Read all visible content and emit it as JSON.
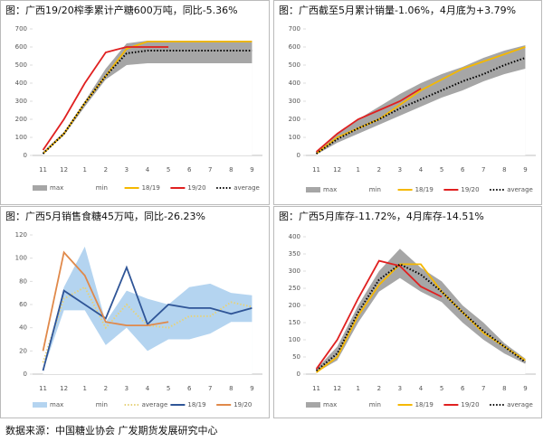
{
  "chart_data": [
    {
      "type": "line",
      "title": "图：广西19/20榨季累计产糖600万吨，同比-5.36%",
      "categories": [
        "11",
        "12",
        "1",
        "2",
        "3",
        "4",
        "5",
        "6",
        "7",
        "8",
        "9"
      ],
      "ylim": [
        0,
        700
      ],
      "yticks": [
        0,
        100,
        200,
        300,
        400,
        500,
        600,
        700
      ],
      "series": [
        {
          "name": "max",
          "kind": "area",
          "color": "#a6a6a6",
          "values": [
            20,
            130,
            300,
            480,
            620,
            635,
            635,
            635,
            635,
            635,
            635
          ]
        },
        {
          "name": "min",
          "kind": "area",
          "color": "#ffffff",
          "values": [
            10,
            110,
            270,
            420,
            500,
            510,
            510,
            510,
            510,
            510,
            510
          ]
        },
        {
          "name": "18/19",
          "color": "#f5b800",
          "values": [
            10,
            120,
            290,
            440,
            590,
            630,
            630,
            630,
            630,
            630,
            630
          ]
        },
        {
          "name": "19/20",
          "color": "#e02020",
          "values": [
            30,
            200,
            400,
            570,
            600,
            600,
            600,
            null,
            null,
            null,
            null
          ]
        },
        {
          "name": "average",
          "color": "#000000",
          "line_style": "dotted",
          "values": [
            10,
            120,
            290,
            440,
            565,
            580,
            580,
            580,
            580,
            580,
            580
          ]
        }
      ]
    },
    {
      "type": "line",
      "title": "图：广西截至5月累计销量-1.06%，4月底为+3.79%",
      "categories": [
        "11",
        "12",
        "1",
        "2",
        "3",
        "4",
        "5",
        "6",
        "7",
        "8",
        "9"
      ],
      "ylim": [
        0,
        700
      ],
      "yticks": [
        0,
        100,
        200,
        300,
        400,
        500,
        600,
        700
      ],
      "series": [
        {
          "name": "max",
          "kind": "area",
          "color": "#a6a6a6",
          "values": [
            20,
            120,
            200,
            270,
            340,
            400,
            450,
            490,
            540,
            580,
            610
          ]
        },
        {
          "name": "min",
          "kind": "area",
          "color": "#ffffff",
          "values": [
            5,
            70,
            120,
            170,
            220,
            270,
            320,
            360,
            410,
            450,
            480
          ]
        },
        {
          "name": "18/19",
          "color": "#f5b800",
          "values": [
            10,
            100,
            150,
            200,
            280,
            360,
            420,
            480,
            520,
            560,
            600
          ]
        },
        {
          "name": "19/20",
          "color": "#e02020",
          "values": [
            20,
            120,
            200,
            250,
            300,
            370,
            null,
            null,
            null,
            null,
            null
          ]
        },
        {
          "name": "average",
          "color": "#000000",
          "line_style": "dotted",
          "values": [
            10,
            90,
            150,
            200,
            260,
            310,
            360,
            410,
            450,
            500,
            540
          ]
        }
      ]
    },
    {
      "type": "line",
      "title": "图：广西5月销售食糖45万吨，同比-26.23%",
      "categories": [
        "11",
        "12",
        "1",
        "2",
        "3",
        "4",
        "5",
        "6",
        "7",
        "8",
        "9"
      ],
      "ylim": [
        0,
        120
      ],
      "yticks": [
        0,
        20,
        40,
        60,
        80,
        100,
        120
      ],
      "series": [
        {
          "name": "max",
          "kind": "area",
          "color": "#b4d4f0",
          "values": [
            5,
            75,
            110,
            45,
            72,
            65,
            60,
            75,
            78,
            70,
            68
          ]
        },
        {
          "name": "min",
          "kind": "area",
          "color": "#ffffff",
          "values": [
            3,
            55,
            55,
            25,
            40,
            20,
            30,
            30,
            35,
            45,
            45
          ]
        },
        {
          "name": "average",
          "color": "#e6d27a",
          "line_style": "dotted",
          "values": [
            10,
            65,
            75,
            40,
            60,
            42,
            40,
            50,
            50,
            62,
            58
          ]
        },
        {
          "name": "18/19",
          "color": "#2f5597",
          "values": [
            3,
            72,
            60,
            48,
            92,
            43,
            60,
            57,
            57,
            52,
            57
          ]
        },
        {
          "name": "19/20",
          "color": "#e0894a",
          "values": [
            20,
            105,
            85,
            45,
            42,
            42,
            45,
            null,
            null,
            null,
            null
          ]
        }
      ]
    },
    {
      "type": "line",
      "title": "图：广西5月库存-11.72%，4月库存-14.51%",
      "categories": [
        "11",
        "12",
        "1",
        "2",
        "3",
        "4",
        "5",
        "6",
        "7",
        "8",
        "9"
      ],
      "ylim": [
        0,
        400
      ],
      "yticks": [
        0,
        50,
        100,
        150,
        200,
        250,
        300,
        350,
        400
      ],
      "series": [
        {
          "name": "max",
          "kind": "area",
          "color": "#a6a6a6",
          "values": [
            15,
            80,
            200,
            300,
            365,
            310,
            270,
            200,
            150,
            90,
            45
          ]
        },
        {
          "name": "min",
          "kind": "area",
          "color": "#ffffff",
          "values": [
            5,
            40,
            150,
            240,
            280,
            240,
            210,
            150,
            100,
            60,
            30
          ]
        },
        {
          "name": "18/19",
          "color": "#f5b800",
          "values": [
            5,
            50,
            170,
            260,
            320,
            320,
            240,
            180,
            120,
            80,
            40
          ]
        },
        {
          "name": "19/20",
          "color": "#e02020",
          "values": [
            15,
            100,
            220,
            330,
            315,
            255,
            225,
            null,
            null,
            null,
            null
          ]
        },
        {
          "name": "average",
          "color": "#000000",
          "line_style": "dotted",
          "values": [
            10,
            60,
            180,
            275,
            320,
            290,
            240,
            180,
            125,
            80,
            35
          ]
        }
      ]
    }
  ],
  "source": "数据来源：中国糖业协会 广发期货发展研究中心"
}
